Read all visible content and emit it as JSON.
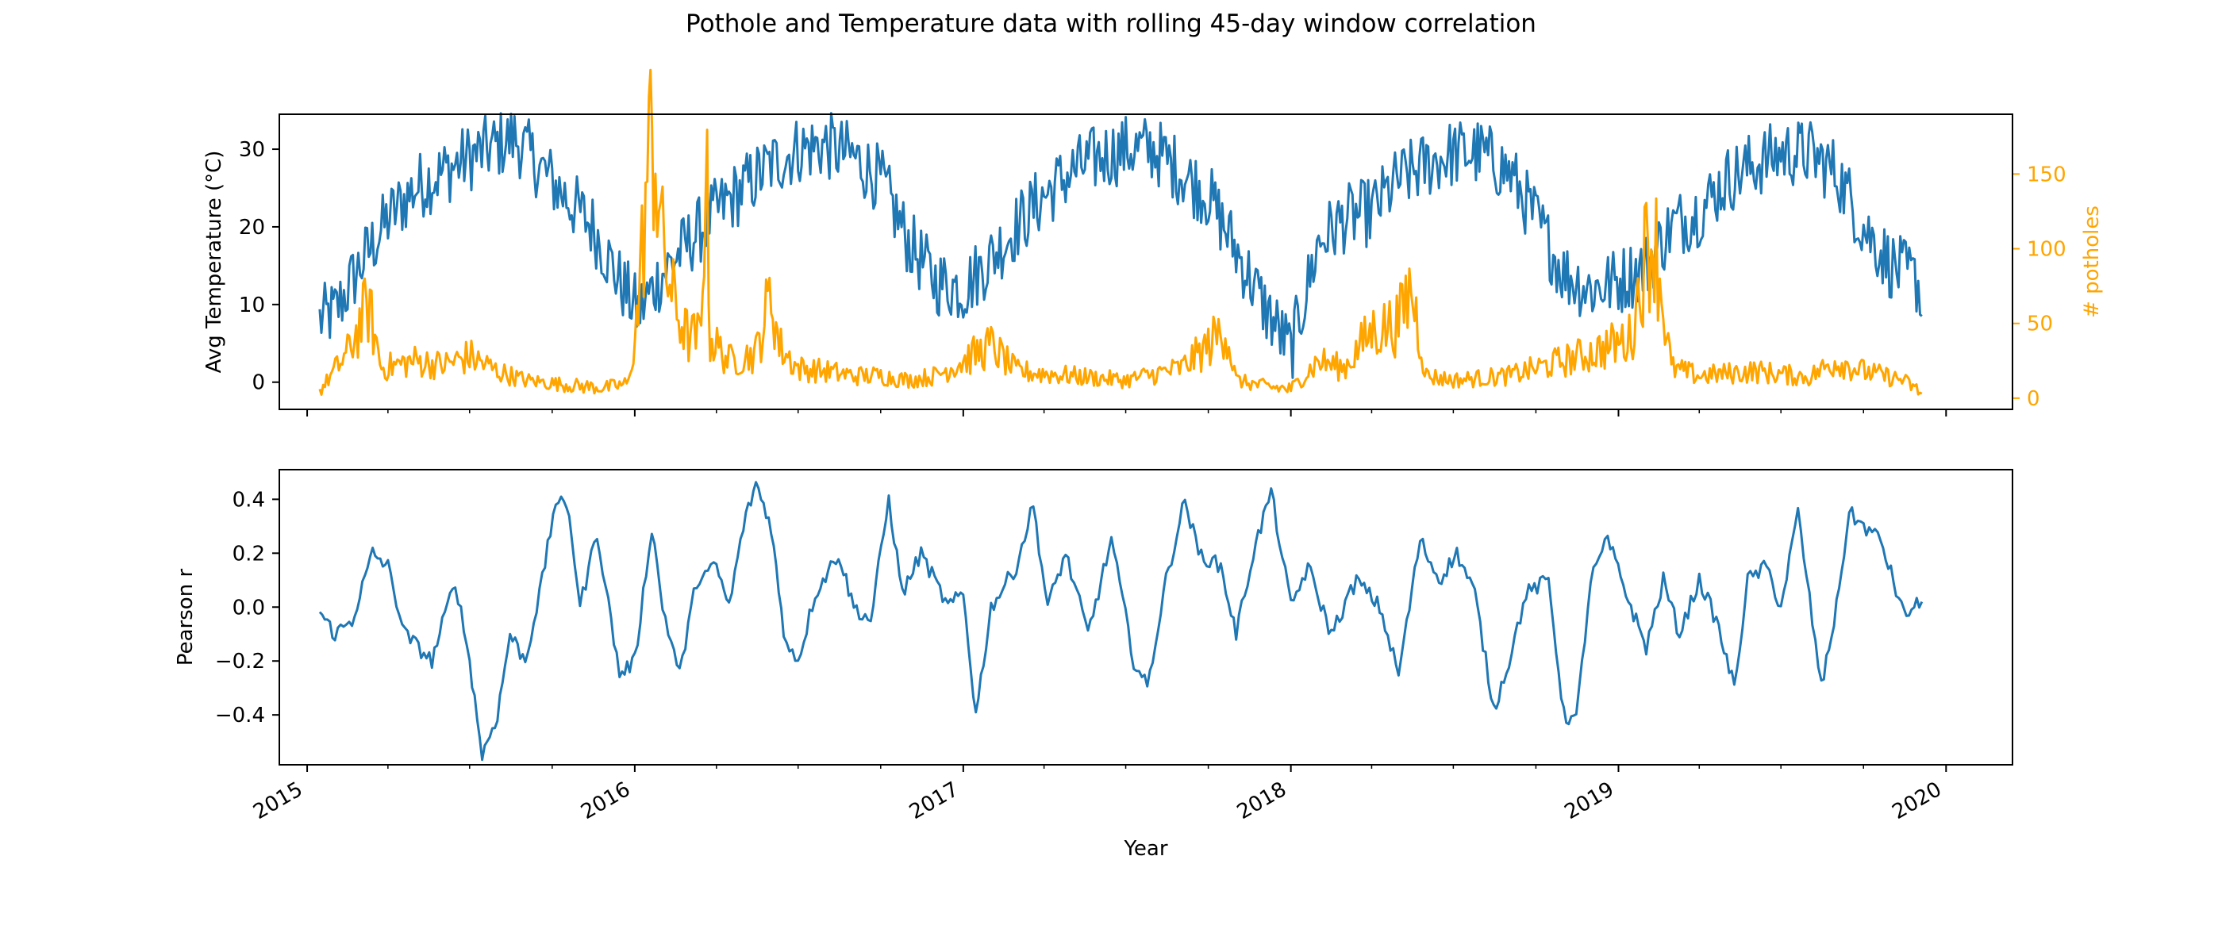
{
  "figure": {
    "title": "Pothole and Temperature data with rolling 45-day window correlation"
  },
  "colors": {
    "temperature": "#1f77b4",
    "potholes": "#ffa500",
    "pearson": "#1f77b4",
    "axis": "#000000"
  },
  "chart_data": [
    {
      "type": "line",
      "panel": "top",
      "xlabel": "",
      "ylabel": "Avg Temperature ($^\\circ$C)",
      "ylabel_display": "Avg Temperature (°C)",
      "y2label": "# potholes",
      "x_type": "date",
      "xlim": [
        "2014-12-01",
        "2020-03-15"
      ],
      "ylim": [
        -3.5,
        34.5
      ],
      "y2lim": [
        -7.5,
        190
      ],
      "yticks": [
        0,
        10,
        20,
        30
      ],
      "y2ticks": [
        0,
        50,
        100,
        150
      ],
      "grid": false,
      "series": [
        {
          "axis": "left",
          "points": [
            [
              "2015-01-15",
              8
            ],
            [
              "2015-02-01",
              9
            ],
            [
              "2015-03-01",
              15
            ],
            [
              "2015-04-01",
              21
            ],
            [
              "2015-05-01",
              25
            ],
            [
              "2015-06-01",
              27
            ],
            [
              "2015-07-01",
              29
            ],
            [
              "2015-08-01",
              30.5
            ],
            [
              "2015-08-20",
              31.5
            ],
            [
              "2015-09-15",
              28
            ],
            [
              "2015-10-15",
              24
            ],
            [
              "2015-11-15",
              20
            ],
            [
              "2015-12-15",
              13
            ],
            [
              "2016-01-05",
              9
            ],
            [
              "2016-02-01",
              14
            ],
            [
              "2016-03-01",
              18
            ],
            [
              "2016-04-01",
              22
            ],
            [
              "2016-05-01",
              25
            ],
            [
              "2016-06-01",
              28
            ],
            [
              "2016-07-01",
              30
            ],
            [
              "2016-08-01",
              30.5
            ],
            [
              "2016-09-01",
              29
            ],
            [
              "2016-10-01",
              26
            ],
            [
              "2016-11-01",
              18
            ],
            [
              "2016-12-01",
              13
            ],
            [
              "2017-01-01",
              12
            ],
            [
              "2017-02-01",
              16
            ],
            [
              "2017-03-01",
              20
            ],
            [
              "2017-04-01",
              24
            ],
            [
              "2017-05-01",
              27
            ],
            [
              "2017-06-01",
              29
            ],
            [
              "2017-07-01",
              30
            ],
            [
              "2017-08-01",
              30
            ],
            [
              "2017-09-01",
              27
            ],
            [
              "2017-10-01",
              24
            ],
            [
              "2017-11-01",
              17
            ],
            [
              "2017-12-01",
              10
            ],
            [
              "2018-01-01",
              4
            ],
            [
              "2018-02-01",
              18
            ],
            [
              "2018-03-01",
              21
            ],
            [
              "2018-04-01",
              22
            ],
            [
              "2018-05-01",
              26
            ],
            [
              "2018-06-01",
              28
            ],
            [
              "2018-07-01",
              29.5
            ],
            [
              "2018-08-01",
              29.5
            ],
            [
              "2018-09-01",
              27
            ],
            [
              "2018-10-01",
              21
            ],
            [
              "2018-11-01",
              14
            ],
            [
              "2018-12-01",
              12
            ],
            [
              "2019-01-01",
              13
            ],
            [
              "2019-02-01",
              15
            ],
            [
              "2019-03-01",
              20
            ],
            [
              "2019-04-01",
              22
            ],
            [
              "2019-05-01",
              26
            ],
            [
              "2019-06-01",
              28
            ],
            [
              "2019-07-01",
              29.5
            ],
            [
              "2019-08-01",
              29.5
            ],
            [
              "2019-09-01",
              27
            ],
            [
              "2019-10-01",
              20
            ],
            [
              "2019-11-01",
              15
            ],
            [
              "2019-12-01",
              13
            ],
            [
              "2019-12-05",
              8.5
            ]
          ]
        },
        {
          "axis": "right",
          "points": [
            [
              "2015-01-15",
              5
            ],
            [
              "2015-02-15",
              30
            ],
            [
              "2015-03-10",
              62
            ],
            [
              "2015-03-25",
              20
            ],
            [
              "2015-05-01",
              25
            ],
            [
              "2015-06-01",
              22
            ],
            [
              "2015-07-01",
              28
            ],
            [
              "2015-08-01",
              18
            ],
            [
              "2015-09-01",
              12
            ],
            [
              "2015-10-01",
              10
            ],
            [
              "2015-11-01",
              8
            ],
            [
              "2015-12-01",
              7
            ],
            [
              "2015-12-25",
              10
            ],
            [
              "2016-01-05",
              60
            ],
            [
              "2016-01-15",
              150
            ],
            [
              "2016-01-22",
              180
            ],
            [
              "2016-02-01",
              100
            ],
            [
              "2016-02-15",
              60
            ],
            [
              "2016-03-01",
              40
            ],
            [
              "2016-03-15",
              42
            ],
            [
              "2016-03-20",
              170
            ],
            [
              "2016-03-25",
              40
            ],
            [
              "2016-04-15",
              25
            ],
            [
              "2016-05-15",
              30
            ],
            [
              "2016-06-01",
              70
            ],
            [
              "2016-06-10",
              35
            ],
            [
              "2016-07-01",
              20
            ],
            [
              "2016-08-01",
              18
            ],
            [
              "2016-09-01",
              15
            ],
            [
              "2016-10-01",
              15
            ],
            [
              "2016-11-01",
              12
            ],
            [
              "2016-12-01",
              15
            ],
            [
              "2017-01-01",
              25
            ],
            [
              "2017-02-01",
              35
            ],
            [
              "2017-03-01",
              18
            ],
            [
              "2017-05-01",
              15
            ],
            [
              "2017-07-01",
              12
            ],
            [
              "2017-09-01",
              20
            ],
            [
              "2017-10-01",
              35
            ],
            [
              "2017-10-20",
              48
            ],
            [
              "2017-11-01",
              12
            ],
            [
              "2017-12-01",
              8
            ],
            [
              "2018-01-01",
              6
            ],
            [
              "2018-02-01",
              25
            ],
            [
              "2018-03-01",
              20
            ],
            [
              "2018-04-01",
              45
            ],
            [
              "2018-05-01",
              50
            ],
            [
              "2018-05-15",
              75
            ],
            [
              "2018-06-01",
              15
            ],
            [
              "2018-07-01",
              12
            ],
            [
              "2018-09-01",
              15
            ],
            [
              "2018-11-01",
              25
            ],
            [
              "2018-12-01",
              30
            ],
            [
              "2019-01-15",
              40
            ],
            [
              "2019-02-01",
              100
            ],
            [
              "2019-02-10",
              110
            ],
            [
              "2019-02-20",
              60
            ],
            [
              "2019-03-01",
              20
            ],
            [
              "2019-04-01",
              15
            ],
            [
              "2019-06-01",
              18
            ],
            [
              "2019-08-01",
              14
            ],
            [
              "2019-09-01",
              25
            ],
            [
              "2019-10-01",
              18
            ],
            [
              "2019-11-15",
              12
            ],
            [
              "2019-12-05",
              3
            ]
          ]
        }
      ]
    },
    {
      "type": "line",
      "panel": "bottom",
      "xlabel": "Year",
      "ylabel": "Pearson r",
      "x_type": "date",
      "xlim": [
        "2014-12-01",
        "2020-03-15"
      ],
      "ylim": [
        -0.585,
        0.51
      ],
      "xticks": [
        "2015",
        "2016",
        "2017",
        "2018",
        "2019",
        "2020"
      ],
      "yticks": [
        -0.4,
        -0.2,
        0.0,
        0.2,
        0.4
      ],
      "grid": false,
      "series": [
        {
          "points": [
            [
              "2015-01-15",
              -0.02
            ],
            [
              "2015-02-01",
              -0.1
            ],
            [
              "2015-02-20",
              -0.05
            ],
            [
              "2015-03-15",
              0.2
            ],
            [
              "2015-04-01",
              0.15
            ],
            [
              "2015-04-20",
              -0.1
            ],
            [
              "2015-05-20",
              -0.2
            ],
            [
              "2015-06-15",
              0.1
            ],
            [
              "2015-07-01",
              -0.2
            ],
            [
              "2015-07-15",
              -0.55
            ],
            [
              "2015-08-01",
              -0.4
            ],
            [
              "2015-08-15",
              -0.1
            ],
            [
              "2015-09-01",
              -0.2
            ],
            [
              "2015-09-20",
              0.1
            ],
            [
              "2015-10-05",
              0.4
            ],
            [
              "2015-10-20",
              0.35
            ],
            [
              "2015-11-01",
              0.0
            ],
            [
              "2015-11-20",
              0.28
            ],
            [
              "2015-12-15",
              -0.25
            ],
            [
              "2016-01-01",
              -0.2
            ],
            [
              "2016-01-20",
              0.3
            ],
            [
              "2016-02-01",
              0.0
            ],
            [
              "2016-02-20",
              -0.25
            ],
            [
              "2016-03-10",
              0.1
            ],
            [
              "2016-04-01",
              0.15
            ],
            [
              "2016-04-15",
              0.0
            ],
            [
              "2016-05-01",
              0.3
            ],
            [
              "2016-05-15",
              0.46
            ],
            [
              "2016-06-01",
              0.3
            ],
            [
              "2016-06-15",
              -0.1
            ],
            [
              "2016-07-01",
              -0.2
            ],
            [
              "2016-07-20",
              0.05
            ],
            [
              "2016-08-15",
              0.2
            ],
            [
              "2016-09-01",
              0.0
            ],
            [
              "2016-09-20",
              -0.05
            ],
            [
              "2016-10-10",
              0.4
            ],
            [
              "2016-10-25",
              0.05
            ],
            [
              "2016-11-15",
              0.2
            ],
            [
              "2016-12-15",
              0.0
            ],
            [
              "2017-01-01",
              0.05
            ],
            [
              "2017-01-15",
              -0.4
            ],
            [
              "2017-02-01",
              0.0
            ],
            [
              "2017-03-01",
              0.15
            ],
            [
              "2017-03-20",
              0.38
            ],
            [
              "2017-04-05",
              0.0
            ],
            [
              "2017-04-25",
              0.2
            ],
            [
              "2017-05-20",
              -0.1
            ],
            [
              "2017-06-15",
              0.25
            ],
            [
              "2017-07-10",
              -0.2
            ],
            [
              "2017-07-25",
              -0.3
            ],
            [
              "2017-08-15",
              0.1
            ],
            [
              "2017-09-05",
              0.4
            ],
            [
              "2017-09-20",
              0.2
            ],
            [
              "2017-10-15",
              0.15
            ],
            [
              "2017-11-01",
              -0.1
            ],
            [
              "2017-11-20",
              0.2
            ],
            [
              "2017-12-10",
              0.43
            ],
            [
              "2018-01-01",
              0.0
            ],
            [
              "2018-01-20",
              0.15
            ],
            [
              "2018-02-15",
              -0.1
            ],
            [
              "2018-03-15",
              0.1
            ],
            [
              "2018-04-10",
              0.0
            ],
            [
              "2018-05-01",
              -0.25
            ],
            [
              "2018-05-25",
              0.25
            ],
            [
              "2018-06-15",
              0.1
            ],
            [
              "2018-07-05",
              0.2
            ],
            [
              "2018-07-25",
              0.05
            ],
            [
              "2018-08-15",
              -0.38
            ],
            [
              "2018-09-01",
              -0.2
            ],
            [
              "2018-09-20",
              0.05
            ],
            [
              "2018-10-15",
              0.1
            ],
            [
              "2018-11-01",
              -0.4
            ],
            [
              "2018-11-15",
              -0.42
            ],
            [
              "2018-12-01",
              0.1
            ],
            [
              "2018-12-20",
              0.25
            ],
            [
              "2019-01-15",
              0.0
            ],
            [
              "2019-02-01",
              -0.15
            ],
            [
              "2019-02-20",
              0.1
            ],
            [
              "2019-03-10",
              -0.1
            ],
            [
              "2019-04-01",
              0.1
            ],
            [
              "2019-04-20",
              -0.05
            ],
            [
              "2019-05-10",
              -0.3
            ],
            [
              "2019-05-25",
              0.1
            ],
            [
              "2019-06-15",
              0.15
            ],
            [
              "2019-07-01",
              0.0
            ],
            [
              "2019-07-20",
              0.35
            ],
            [
              "2019-08-05",
              -0.05
            ],
            [
              "2019-08-15",
              -0.3
            ],
            [
              "2019-09-01",
              0.0
            ],
            [
              "2019-09-15",
              0.35
            ],
            [
              "2019-10-01",
              0.3
            ],
            [
              "2019-10-20",
              0.25
            ],
            [
              "2019-11-15",
              -0.03
            ],
            [
              "2019-12-05",
              0.02
            ]
          ]
        }
      ]
    }
  ]
}
